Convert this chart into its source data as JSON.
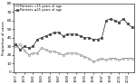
{
  "title": "",
  "xlabel": "",
  "ylabel": "Proportion of cases",
  "years": [
    1977,
    1978,
    1979,
    1980,
    1981,
    1982,
    1983,
    1984,
    1985,
    1986,
    1987,
    1988,
    1989,
    1990,
    1991,
    1992,
    1993,
    1994,
    1995,
    1996,
    1997,
    1998,
    1999,
    2000,
    2001,
    2002,
    2003,
    2004
  ],
  "series_lt15": [
    30,
    32,
    25,
    20,
    22,
    22,
    28,
    26,
    24,
    24,
    22,
    20,
    22,
    22,
    22,
    20,
    18,
    16,
    12,
    14,
    16,
    14,
    16,
    16,
    14,
    16,
    16,
    16
  ],
  "series_gt25": [
    32,
    26,
    30,
    28,
    30,
    38,
    40,
    42,
    44,
    46,
    46,
    42,
    44,
    44,
    44,
    42,
    40,
    40,
    38,
    38,
    40,
    60,
    62,
    60,
    58,
    62,
    56,
    52
  ],
  "color_lt15": "#888888",
  "color_gt25": "#444444",
  "marker_lt15": "o",
  "marker_gt25": "s",
  "ylim": [
    0,
    80
  ],
  "yticks": [
    0,
    10,
    20,
    30,
    40,
    50,
    60,
    70,
    80
  ],
  "legend_lt15": "Patients <15 years of age",
  "legend_gt25": "Patients ≥25 years of age",
  "bg_color": "#ffffff",
  "line_style": "-",
  "markersize": 1.5,
  "linewidth": 0.6,
  "xtick_years": [
    1977,
    1979,
    1981,
    1983,
    1985,
    1987,
    1989,
    1991,
    1993,
    1995,
    1997,
    1999,
    2001,
    2003
  ]
}
